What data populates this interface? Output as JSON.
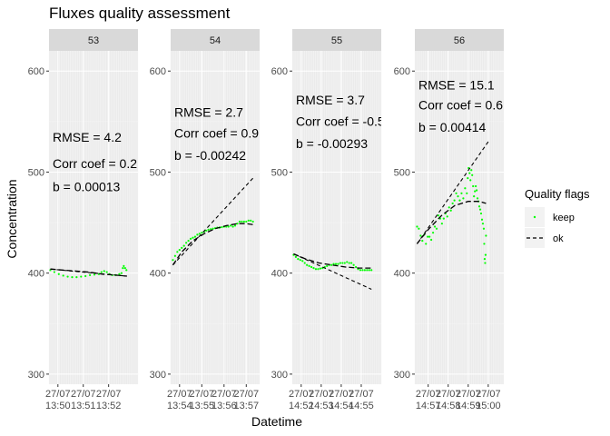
{
  "chart_data": {
    "type": "scatter",
    "title": "Fluxes quality assessment",
    "xlabel": "Datetime",
    "ylabel": "Concentration",
    "ylim": [
      290,
      620
    ],
    "y_ticks": [
      300,
      400,
      500,
      600
    ],
    "grid": true,
    "legend": {
      "title": "Quality flags",
      "placement": "right",
      "entries": [
        {
          "label": "keep",
          "kind": "points",
          "color": "#00ff00"
        },
        {
          "label": "ok",
          "kind": "dashed-line",
          "color": "#000000"
        }
      ]
    },
    "panels": [
      {
        "strip": "53",
        "xlim": [
          0,
          200
        ],
        "x_ticks": [
          {
            "x": 20,
            "line1": "27/07",
            "line2": "13:50"
          },
          {
            "x": 77,
            "line1": "27/07",
            "line2": "13:51"
          },
          {
            "x": 134,
            "line1": "27/07",
            "line2": "13:52"
          }
        ],
        "annotation": [
          "RMSE = 4.2",
          "Corr coef = 0.2",
          "b = 0.00013"
        ],
        "annotation_y": [
          530,
          504,
          481
        ],
        "ok_curve": [
          [
            3,
            404
          ],
          [
            30,
            403
          ],
          [
            60,
            402
          ],
          [
            90,
            401
          ],
          [
            120,
            399
          ],
          [
            150,
            398
          ],
          [
            175,
            397
          ]
        ],
        "linear_fit": [
          [
            3,
            404
          ],
          [
            175,
            397
          ]
        ],
        "keep_points": [
          [
            3,
            403
          ],
          [
            12,
            401
          ],
          [
            22,
            399
          ],
          [
            32,
            397.5
          ],
          [
            42,
            396.5
          ],
          [
            52,
            396
          ],
          [
            62,
            396
          ],
          [
            72,
            396.5
          ],
          [
            82,
            397
          ],
          [
            92,
            398
          ],
          [
            102,
            398.5
          ],
          [
            112,
            399
          ],
          [
            118,
            401
          ],
          [
            124,
            402
          ],
          [
            130,
            401
          ],
          [
            136,
            399
          ],
          [
            142,
            398
          ],
          [
            150,
            398
          ],
          [
            158,
            399
          ],
          [
            163,
            400
          ],
          [
            166,
            405
          ],
          [
            168,
            407
          ],
          [
            171,
            405
          ],
          [
            174,
            403
          ]
        ]
      },
      {
        "strip": "54",
        "xlim": [
          0,
          200
        ],
        "x_ticks": [
          {
            "x": 20,
            "line1": "27/07",
            "line2": "13:54"
          },
          {
            "x": 70,
            "line1": "27/07",
            "line2": "13:55"
          },
          {
            "x": 120,
            "line1": "27/07",
            "line2": "13:56"
          },
          {
            "x": 170,
            "line1": "27/07",
            "line2": "13:57"
          }
        ],
        "annotation": [
          "RMSE = 2.7",
          "Corr coef = 0.9",
          "b = -0.00242"
        ],
        "annotation_y": [
          555,
          534,
          512
        ],
        "ok_curve": [
          [
            5,
            408
          ],
          [
            25,
            421
          ],
          [
            50,
            432
          ],
          [
            75,
            439
          ],
          [
            100,
            444
          ],
          [
            125,
            447
          ],
          [
            150,
            449
          ],
          [
            170,
            449
          ],
          [
            185,
            448
          ]
        ],
        "linear_fit": [
          [
            5,
            408
          ],
          [
            185,
            494
          ]
        ],
        "keep_points": [
          [
            5,
            413
          ],
          [
            10,
            417
          ],
          [
            15,
            421
          ],
          [
            20,
            423
          ],
          [
            25,
            425
          ],
          [
            30,
            427
          ],
          [
            35,
            430
          ],
          [
            40,
            432
          ],
          [
            45,
            434
          ],
          [
            50,
            435
          ],
          [
            55,
            436
          ],
          [
            60,
            438
          ],
          [
            65,
            439
          ],
          [
            70,
            440
          ],
          [
            75,
            441
          ],
          [
            80,
            442
          ],
          [
            85,
            443
          ],
          [
            90,
            443.5
          ],
          [
            95,
            444
          ],
          [
            100,
            444.5
          ],
          [
            105,
            445
          ],
          [
            110,
            445
          ],
          [
            115,
            445.5
          ],
          [
            120,
            446
          ],
          [
            125,
            446
          ],
          [
            130,
            446
          ],
          [
            135,
            447
          ],
          [
            140,
            446
          ],
          [
            145,
            447
          ],
          [
            150,
            449
          ],
          [
            155,
            451
          ],
          [
            160,
            451
          ],
          [
            165,
            451
          ],
          [
            170,
            451
          ],
          [
            175,
            452
          ],
          [
            180,
            452
          ],
          [
            185,
            451
          ]
        ]
      },
      {
        "strip": "55",
        "xlim": [
          0,
          200
        ],
        "x_ticks": [
          {
            "x": 20,
            "line1": "27/07",
            "line2": "14:52"
          },
          {
            "x": 65,
            "line1": "27/07",
            "line2": "14:53"
          },
          {
            "x": 110,
            "line1": "27/07",
            "line2": "14:54"
          },
          {
            "x": 155,
            "line1": "27/07",
            "line2": "14:55"
          }
        ],
        "annotation": [
          "RMSE = 3.7",
          "Corr coef = -0.5",
          "b = -0.00293"
        ],
        "annotation_y": [
          567,
          546,
          524
        ],
        "ok_curve": [
          [
            3,
            419
          ],
          [
            30,
            414
          ],
          [
            60,
            410
          ],
          [
            90,
            408
          ],
          [
            120,
            406
          ],
          [
            150,
            405
          ],
          [
            178,
            405
          ]
        ],
        "linear_fit": [
          [
            3,
            419
          ],
          [
            178,
            384
          ]
        ],
        "keep_points": [
          [
            3,
            418
          ],
          [
            8,
            416
          ],
          [
            13,
            414
          ],
          [
            18,
            413
          ],
          [
            23,
            412
          ],
          [
            28,
            410
          ],
          [
            33,
            408
          ],
          [
            38,
            407
          ],
          [
            43,
            406
          ],
          [
            48,
            405
          ],
          [
            53,
            404
          ],
          [
            58,
            404
          ],
          [
            63,
            404.5
          ],
          [
            68,
            405
          ],
          [
            73,
            406
          ],
          [
            78,
            407
          ],
          [
            83,
            408
          ],
          [
            88,
            408
          ],
          [
            93,
            409
          ],
          [
            98,
            409
          ],
          [
            103,
            409
          ],
          [
            108,
            410
          ],
          [
            113,
            410
          ],
          [
            118,
            410
          ],
          [
            123,
            411
          ],
          [
            128,
            410
          ],
          [
            133,
            410
          ],
          [
            138,
            408
          ],
          [
            143,
            406
          ],
          [
            148,
            404
          ],
          [
            153,
            403
          ],
          [
            158,
            403
          ],
          [
            163,
            403
          ],
          [
            168,
            403
          ],
          [
            173,
            403
          ],
          [
            178,
            403
          ]
        ]
      },
      {
        "strip": "56",
        "xlim": [
          0,
          200
        ],
        "x_ticks": [
          {
            "x": 30,
            "line1": "27/07",
            "line2": "14:57"
          },
          {
            "x": 75,
            "line1": "27/07",
            "line2": "14:58"
          },
          {
            "x": 120,
            "line1": "27/07",
            "line2": "14:59"
          },
          {
            "x": 165,
            "line1": "27/07",
            "line2": "15:00"
          }
        ],
        "annotation": [
          "RMSE = 15.1",
          "Corr coef = 0.6",
          "b = 0.00414"
        ],
        "annotation_y": [
          582,
          562,
          540
        ],
        "ok_curve": [
          [
            5,
            429
          ],
          [
            30,
            443
          ],
          [
            60,
            457
          ],
          [
            90,
            467
          ],
          [
            120,
            471
          ],
          [
            145,
            471
          ],
          [
            160,
            469
          ]
        ],
        "linear_fit": [
          [
            5,
            429
          ],
          [
            165,
            530
          ]
        ],
        "keep_points": [
          [
            5,
            446
          ],
          [
            9,
            444
          ],
          [
            13,
            437
          ],
          [
            17,
            432
          ],
          [
            21,
            438
          ],
          [
            25,
            429
          ],
          [
            29,
            436
          ],
          [
            33,
            436
          ],
          [
            37,
            433
          ],
          [
            41,
            440
          ],
          [
            45,
            446
          ],
          [
            49,
            444
          ],
          [
            53,
            457
          ],
          [
            57,
            454
          ],
          [
            61,
            449
          ],
          [
            65,
            454
          ],
          [
            69,
            459
          ],
          [
            73,
            456
          ],
          [
            77,
            465
          ],
          [
            81,
            462
          ],
          [
            85,
            469
          ],
          [
            89,
            472
          ],
          [
            93,
            479
          ],
          [
            97,
            476
          ],
          [
            101,
            472
          ],
          [
            105,
            479
          ],
          [
            109,
            474
          ],
          [
            113,
            484
          ],
          [
            117,
            479
          ],
          [
            119,
            494
          ],
          [
            121,
            504
          ],
          [
            123,
            499
          ],
          [
            125,
            492
          ],
          [
            127,
            502
          ],
          [
            129,
            497
          ],
          [
            131,
            486
          ],
          [
            133,
            476
          ],
          [
            135,
            481
          ],
          [
            137,
            486
          ],
          [
            139,
            482
          ],
          [
            141,
            474
          ],
          [
            143,
            471
          ],
          [
            145,
            466
          ],
          [
            147,
            463
          ],
          [
            149,
            459
          ],
          [
            151,
            453
          ],
          [
            153,
            449
          ],
          [
            155,
            444
          ],
          [
            156,
            429
          ],
          [
            157,
            414
          ],
          [
            158,
            410
          ],
          [
            159,
            418
          ],
          [
            160,
            437
          ]
        ]
      }
    ]
  },
  "colors": {
    "panel_bg": "#ebebeb",
    "grid_major": "#ffffff",
    "strip_bg": "#d9d9d9",
    "keep": "#00ff00",
    "fit_line": "#000000"
  }
}
